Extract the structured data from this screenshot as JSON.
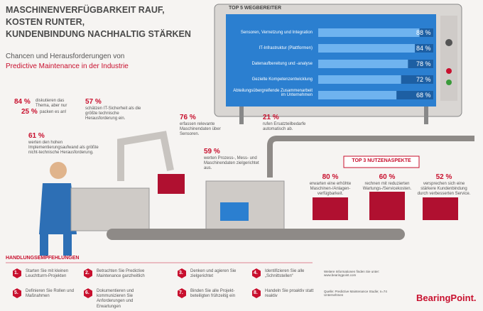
{
  "header": {
    "title": [
      "MASCHINENVERFÜGBARKEIT RAUF,",
      "KOSTEN RUNTER,",
      "KUNDENBINDUNG NACHHALTIG STÄRKEN"
    ],
    "subtitle": "Chancen und Herausforderungen von",
    "subtitle_highlight": "Predictive Maintenance in der Industrie"
  },
  "top5": {
    "title": "TOP 5 WEGBEREITER",
    "xlim": [
      0,
      100
    ],
    "items": [
      {
        "label": "Sensoren, Vernetzung und Integration",
        "value": 88,
        "value_label": "88 %"
      },
      {
        "label": "IT-Infrastruktur (Plattformen)",
        "value": 84,
        "value_label": "84 %"
      },
      {
        "label": "Datenaufbereitung und -analyse",
        "value": 78,
        "value_label": "78 %"
      },
      {
        "label": "Gezielte Kompetenzentwicklung",
        "value": 72,
        "value_label": "72 %"
      },
      {
        "label": "Abteilungsübergreifende Zusammenarbeit im Unternehmen",
        "value": 68,
        "value_label": "68 %"
      }
    ]
  },
  "stats": [
    {
      "value": {
        "value": 84,
        "label": "84 %"
      },
      "text": "diskutieren das Thema, aber nur",
      "value2": {
        "value": 25,
        "label": "25 %"
      },
      "text2": "packen es an!"
    },
    {
      "value": {
        "value": 57,
        "label": "57 %"
      },
      "text": "schätzen IT-Sicherheit als die größte technische Herausforderung ein."
    },
    {
      "value": {
        "value": 61,
        "label": "61 %"
      },
      "text": "werten den hohen Implementierungsaufwand als größte nicht-technische Herausforderung."
    },
    {
      "value": {
        "value": 76,
        "label": "76 %"
      },
      "text": "erfassen relevante Maschinendaten über Sensoren."
    },
    {
      "value": {
        "value": 59,
        "label": "59 %"
      },
      "text": "werten Prozess-, Mess- und Maschinendaten zielgerichtet aus."
    },
    {
      "value": {
        "value": 21,
        "label": "21 %"
      },
      "text": "rufen Ersatzteilbedarfe automatisch ab."
    }
  ],
  "top3": {
    "title": "TOP 3 NUTZENASPEKTE",
    "items": [
      {
        "value": {
          "value": 80,
          "label": "80 %"
        },
        "text": "erwarten eine erhöhte Maschinen-/Anlagen-verfügbarkeit."
      },
      {
        "value": {
          "value": 60,
          "label": "60 %"
        },
        "text": "rechnen mit reduzierten Wartungs-/Servicekosten."
      },
      {
        "value": {
          "value": 52,
          "label": "52 %"
        },
        "text": "versprechen sich eine stärkere Kundenbindung durch verbesserten Service."
      }
    ]
  },
  "recommendations": {
    "title": "HANDLUNGSEMPFEHLUNGEN",
    "items": [
      {
        "number": "1.",
        "text": "Starten Sie mit kleinen Leuchtturm-Projekten"
      },
      {
        "number": "2.",
        "text": "Betrachten Sie Predictive Maintenance ganzheitlich"
      },
      {
        "number": "3.",
        "text": "Denken und agieren Sie zielgerichtet"
      },
      {
        "number": "4.",
        "text": "Identifizieren Sie alle „Schnittstellen“"
      },
      {
        "number": "5.",
        "text": "Definieren Sie Rollen und Maßnahmen"
      },
      {
        "number": "6.",
        "text": "Dokumentieren und kommunizieren Sie Anforderungen und Erwartungen"
      },
      {
        "number": "7.",
        "text": "Binden Sie alle Projekt-beteiligten frühzeitig ein"
      },
      {
        "number": "8.",
        "text": "Handeln Sie proaktiv statt reaktiv"
      }
    ]
  },
  "footer": {
    "info": "Weitere Informationen finden Sie unter: www.bearingpoint.com",
    "source": "Quelle: Predictive Maintenance Studie; n=74 Unternehmen",
    "logo": "BearingPoint."
  }
}
